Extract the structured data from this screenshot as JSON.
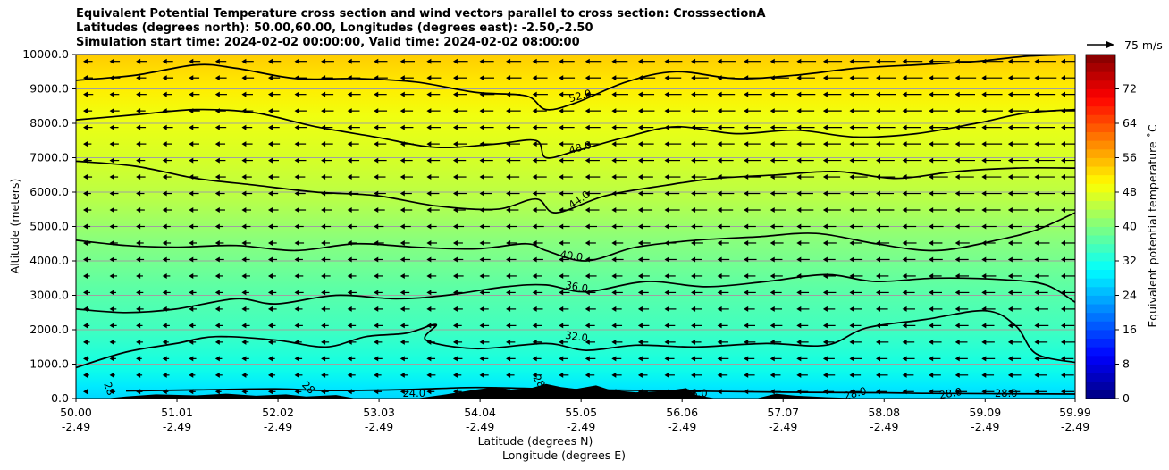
{
  "chart_data": {
    "type": "contour",
    "title_lines": [
      "Equivalent Potential Temperature cross section and wind vectors parallel to cross section: CrosssectionA",
      "Latitudes (degrees north): 50.00,60.00, Longitudes (degrees east): -2.50,-2.50",
      "Simulation start time: 2024-02-02 00:00:00, Valid time: 2024-02-02 08:00:00"
    ],
    "ylabel": "Altitude (meters)",
    "xlabel_lat": "Latitude (degrees N)",
    "xlabel_lon": "Longitude (degrees E)",
    "xlim": [
      50.0,
      59.99
    ],
    "ylim": [
      0,
      10000
    ],
    "x_ticks": [
      {
        "value": 50.0,
        "lat": "50.00",
        "lon": "-2.49"
      },
      {
        "value": 51.01,
        "lat": "51.01",
        "lon": "-2.49"
      },
      {
        "value": 52.02,
        "lat": "52.02",
        "lon": "-2.49"
      },
      {
        "value": 53.03,
        "lat": "53.03",
        "lon": "-2.49"
      },
      {
        "value": 54.04,
        "lat": "54.04",
        "lon": "-2.49"
      },
      {
        "value": 55.05,
        "lat": "55.05",
        "lon": "-2.49"
      },
      {
        "value": 56.06,
        "lat": "56.06",
        "lon": "-2.49"
      },
      {
        "value": 57.07,
        "lat": "57.07",
        "lon": "-2.49"
      },
      {
        "value": 58.08,
        "lat": "58.08",
        "lon": "-2.49"
      },
      {
        "value": 59.09,
        "lat": "59.09",
        "lon": "-2.49"
      },
      {
        "value": 59.99,
        "lat": "59.99",
        "lon": "-2.49"
      }
    ],
    "y_ticks": [
      {
        "value": 0,
        "label": "0.0"
      },
      {
        "value": 1000,
        "label": "1000.0"
      },
      {
        "value": 2000,
        "label": "2000.0"
      },
      {
        "value": 3000,
        "label": "3000.0"
      },
      {
        "value": 4000,
        "label": "4000.0"
      },
      {
        "value": 5000,
        "label": "5000.0"
      },
      {
        "value": 6000,
        "label": "6000.0"
      },
      {
        "value": 7000,
        "label": "7000.0"
      },
      {
        "value": 8000,
        "label": "8000.0"
      },
      {
        "value": 9000,
        "label": "9000.0"
      },
      {
        "value": 10000,
        "label": "10000.0"
      }
    ],
    "grid": "horizontal",
    "colorbar": {
      "label": "Equivalent potential temperature ˚C",
      "range": [
        0,
        80
      ],
      "ticks": [
        "0",
        "8",
        "16",
        "24",
        "32",
        "40",
        "48",
        "56",
        "64",
        "72"
      ]
    },
    "quiver_key": {
      "label": "75 m/s"
    },
    "contours": [
      {
        "level": 28.0,
        "label": "28.0",
        "points": [
          [
            50.5,
            220
          ],
          [
            51.2,
            250
          ],
          [
            52.0,
            280
          ],
          [
            52.5,
            230
          ],
          [
            53.3,
            260
          ],
          [
            54.0,
            320
          ],
          [
            54.7,
            280
          ],
          [
            55.2,
            250
          ],
          [
            55.8,
            230
          ],
          [
            56.6,
            200
          ],
          [
            57.3,
            180
          ],
          [
            58.0,
            170
          ],
          [
            58.5,
            150
          ],
          [
            59.2,
            140
          ],
          [
            59.99,
            130
          ]
        ]
      },
      {
        "level": 32.0,
        "label": "32.0",
        "points": [
          [
            50.0,
            900
          ],
          [
            50.5,
            1350
          ],
          [
            51.0,
            1600
          ],
          [
            51.4,
            1800
          ],
          [
            52.0,
            1700
          ],
          [
            52.5,
            1500
          ],
          [
            52.9,
            1800
          ],
          [
            53.3,
            1900
          ],
          [
            53.6,
            2150
          ],
          [
            53.5,
            1700
          ],
          [
            54.0,
            1450
          ],
          [
            54.7,
            1600
          ],
          [
            55.1,
            1400
          ],
          [
            55.6,
            1550
          ],
          [
            56.2,
            1500
          ],
          [
            56.9,
            1600
          ],
          [
            57.5,
            1550
          ],
          [
            57.9,
            2050
          ],
          [
            58.5,
            2300
          ],
          [
            59.1,
            2550
          ],
          [
            59.4,
            2100
          ],
          [
            59.6,
            1300
          ],
          [
            59.99,
            1050
          ]
        ]
      },
      {
        "level": 36.0,
        "label": "36.0",
        "points": [
          [
            50.0,
            2600
          ],
          [
            50.5,
            2500
          ],
          [
            51.0,
            2600
          ],
          [
            51.6,
            2900
          ],
          [
            52.0,
            2750
          ],
          [
            52.6,
            3000
          ],
          [
            53.2,
            2900
          ],
          [
            53.7,
            3000
          ],
          [
            54.3,
            3250
          ],
          [
            54.7,
            3300
          ],
          [
            55.1,
            3100
          ],
          [
            55.7,
            3400
          ],
          [
            56.3,
            3250
          ],
          [
            56.9,
            3400
          ],
          [
            57.5,
            3600
          ],
          [
            58.0,
            3400
          ],
          [
            58.6,
            3500
          ],
          [
            59.3,
            3450
          ],
          [
            59.7,
            3300
          ],
          [
            59.99,
            2800
          ]
        ]
      },
      {
        "level": 40.0,
        "label": "40.0",
        "points": [
          [
            50.0,
            4600
          ],
          [
            50.5,
            4450
          ],
          [
            51.0,
            4400
          ],
          [
            51.6,
            4450
          ],
          [
            52.2,
            4300
          ],
          [
            52.8,
            4500
          ],
          [
            53.4,
            4400
          ],
          [
            54.0,
            4350
          ],
          [
            54.5,
            4500
          ],
          [
            54.7,
            4300
          ],
          [
            55.1,
            4000
          ],
          [
            55.6,
            4400
          ],
          [
            56.2,
            4600
          ],
          [
            56.8,
            4700
          ],
          [
            57.4,
            4800
          ],
          [
            58.0,
            4500
          ],
          [
            58.6,
            4300
          ],
          [
            59.2,
            4600
          ],
          [
            59.6,
            4900
          ],
          [
            59.99,
            5400
          ]
        ]
      },
      {
        "level": 44.0,
        "label": "44.0",
        "points": [
          [
            50.0,
            6900
          ],
          [
            50.6,
            6750
          ],
          [
            51.2,
            6400
          ],
          [
            51.8,
            6200
          ],
          [
            52.4,
            6000
          ],
          [
            53.0,
            5900
          ],
          [
            53.6,
            5600
          ],
          [
            54.2,
            5500
          ],
          [
            54.6,
            5800
          ],
          [
            54.8,
            5400
          ],
          [
            55.3,
            5900
          ],
          [
            55.9,
            6200
          ],
          [
            56.4,
            6400
          ],
          [
            57.0,
            6500
          ],
          [
            57.6,
            6600
          ],
          [
            58.2,
            6400
          ],
          [
            58.8,
            6600
          ],
          [
            59.4,
            6700
          ],
          [
            59.99,
            6700
          ]
        ]
      },
      {
        "level": 48.0,
        "label": "48.0",
        "points": [
          [
            50.0,
            8100
          ],
          [
            50.6,
            8250
          ],
          [
            51.2,
            8400
          ],
          [
            51.8,
            8300
          ],
          [
            52.4,
            7900
          ],
          [
            53.0,
            7600
          ],
          [
            53.6,
            7300
          ],
          [
            54.2,
            7400
          ],
          [
            54.6,
            7500
          ],
          [
            54.7,
            7000
          ],
          [
            55.0,
            7200
          ],
          [
            55.5,
            7600
          ],
          [
            56.0,
            7900
          ],
          [
            56.6,
            7700
          ],
          [
            57.2,
            7800
          ],
          [
            57.8,
            7600
          ],
          [
            58.4,
            7700
          ],
          [
            59.0,
            8000
          ],
          [
            59.5,
            8300
          ],
          [
            59.99,
            8400
          ]
        ]
      },
      {
        "level": 52.0,
        "label": "52.0",
        "points": [
          [
            50.0,
            9250
          ],
          [
            50.6,
            9400
          ],
          [
            51.2,
            9700
          ],
          [
            51.6,
            9600
          ],
          [
            52.2,
            9300
          ],
          [
            52.8,
            9300
          ],
          [
            53.4,
            9200
          ],
          [
            54.0,
            8900
          ],
          [
            54.5,
            8800
          ],
          [
            54.7,
            8400
          ],
          [
            55.0,
            8600
          ],
          [
            55.5,
            9200
          ],
          [
            56.0,
            9500
          ],
          [
            56.6,
            9300
          ],
          [
            57.2,
            9400
          ],
          [
            57.8,
            9600
          ],
          [
            58.4,
            9700
          ],
          [
            59.0,
            9800
          ],
          [
            59.5,
            9950
          ],
          [
            59.99,
            10000
          ]
        ]
      }
    ],
    "contour_labels": [
      {
        "text": "52.0",
        "x": 55.05,
        "y": 8700,
        "rotation": -15
      },
      {
        "text": "48.0",
        "x": 55.05,
        "y": 7200,
        "rotation": -15
      },
      {
        "text": "44.0",
        "x": 55.05,
        "y": 5700,
        "rotation": -35
      },
      {
        "text": "40.0",
        "x": 54.95,
        "y": 4050,
        "rotation": 8
      },
      {
        "text": "36.0",
        "x": 55.0,
        "y": 3150,
        "rotation": 10
      },
      {
        "text": "32.0",
        "x": 55.0,
        "y": 1700,
        "rotation": 8
      },
      {
        "text": "28.0",
        "x": 56.2,
        "y": 50,
        "rotation": 0
      },
      {
        "text": "28.0",
        "x": 57.8,
        "y": 50,
        "rotation": -15
      },
      {
        "text": "28.0",
        "x": 58.75,
        "y": 50,
        "rotation": -10
      },
      {
        "text": "28.0",
        "x": 59.3,
        "y": 50,
        "rotation": 0
      },
      {
        "text": "24.0",
        "x": 53.38,
        "y": 50,
        "rotation": 0
      },
      {
        "text": "28",
        "x": 50.3,
        "y": 250,
        "rotation": 70
      },
      {
        "text": "28",
        "x": 52.3,
        "y": 250,
        "rotation": 45
      },
      {
        "text": "28",
        "x": 54.6,
        "y": 450,
        "rotation": 60
      }
    ],
    "terrain": [
      [
        50.0,
        0
      ],
      [
        50.3,
        0
      ],
      [
        50.5,
        60
      ],
      [
        50.8,
        120
      ],
      [
        51.2,
        90
      ],
      [
        51.5,
        140
      ],
      [
        51.8,
        80
      ],
      [
        52.1,
        120
      ],
      [
        52.3,
        60
      ],
      [
        52.6,
        100
      ],
      [
        52.8,
        0
      ],
      [
        53.4,
        0
      ],
      [
        53.7,
        120
      ],
      [
        54.0,
        260
      ],
      [
        54.2,
        330
      ],
      [
        54.35,
        260
      ],
      [
        54.55,
        300
      ],
      [
        54.7,
        420
      ],
      [
        54.85,
        330
      ],
      [
        55.0,
        280
      ],
      [
        55.2,
        380
      ],
      [
        55.35,
        240
      ],
      [
        55.6,
        180
      ],
      [
        55.9,
        220
      ],
      [
        56.1,
        300
      ],
      [
        56.2,
        100
      ],
      [
        56.4,
        0
      ],
      [
        56.8,
        0
      ],
      [
        57.0,
        140
      ],
      [
        57.2,
        80
      ],
      [
        57.5,
        40
      ],
      [
        57.9,
        0
      ],
      [
        59.99,
        0
      ]
    ]
  }
}
